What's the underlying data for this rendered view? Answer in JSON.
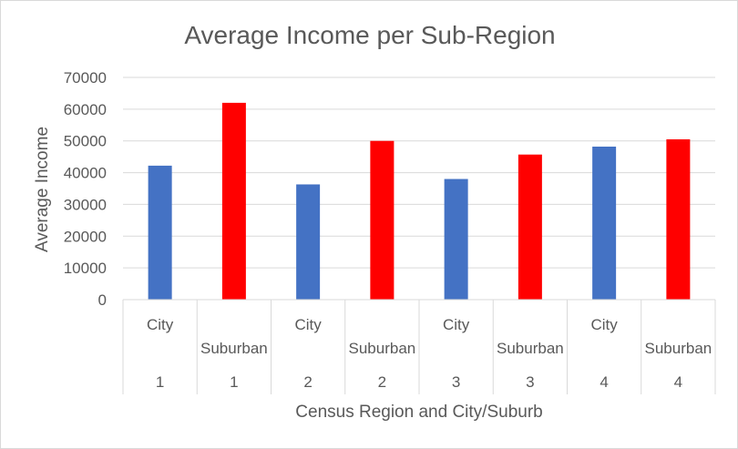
{
  "chart_data": {
    "type": "bar",
    "title": "Average Income per Sub-Region",
    "xlabel": "Census Region and City/Suburb",
    "ylabel": "Average Income",
    "ylim": [
      0,
      70000
    ],
    "yticks": [
      0,
      10000,
      20000,
      30000,
      40000,
      50000,
      60000,
      70000
    ],
    "grid": true,
    "legend": "none",
    "categories": [
      {
        "sub": "City",
        "group": "1"
      },
      {
        "sub": "Suburban",
        "group": "1"
      },
      {
        "sub": "City",
        "group": "2"
      },
      {
        "sub": "Suburban",
        "group": "2"
      },
      {
        "sub": "City",
        "group": "3"
      },
      {
        "sub": "Suburban",
        "group": "3"
      },
      {
        "sub": "City",
        "group": "4"
      },
      {
        "sub": "Suburban",
        "group": "4"
      }
    ],
    "values": [
      42200,
      62000,
      36300,
      50000,
      38000,
      45700,
      48200,
      50500
    ],
    "colors": {
      "City": "#4472c4",
      "Suburban": "#ff0000",
      "grid": "#d9d9d9",
      "text": "#595959"
    }
  }
}
